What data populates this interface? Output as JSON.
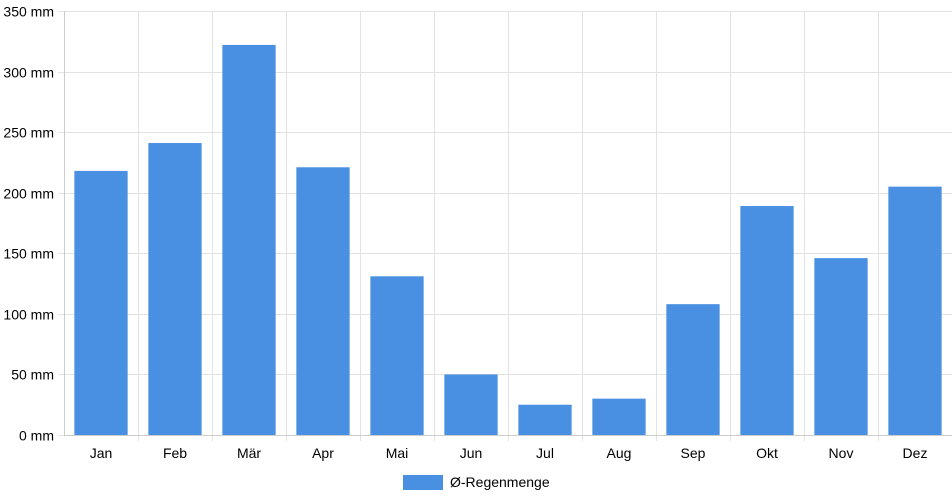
{
  "chart_data": {
    "type": "bar",
    "categories": [
      "Jan",
      "Feb",
      "Mär",
      "Apr",
      "Mai",
      "Jun",
      "Jul",
      "Aug",
      "Sep",
      "Okt",
      "Nov",
      "Dez"
    ],
    "series": [
      {
        "name": "Ø-Regenmenge",
        "values": [
          218,
          241,
          322,
          221,
          131,
          50,
          25,
          30,
          108,
          189,
          146,
          205
        ],
        "color": "#4a90e2"
      }
    ],
    "y_ticks": [
      "0 mm",
      "50 mm",
      "100 mm",
      "150 mm",
      "200 mm",
      "250 mm",
      "300 mm",
      "350 mm"
    ],
    "y_unit": "mm",
    "ylim": [
      0,
      350
    ],
    "grid": true,
    "legend_position": "bottom"
  }
}
